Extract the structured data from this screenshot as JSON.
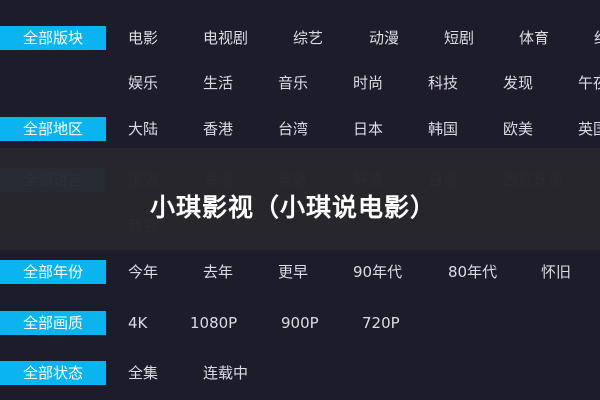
{
  "rows": [
    {
      "label": "全部版块",
      "items": [
        "电影",
        "电视剧",
        "综艺",
        "动漫",
        "短剧",
        "体育",
        "纪录"
      ]
    },
    {
      "label": "",
      "items": [
        "娱乐",
        "生活",
        "音乐",
        "时尚",
        "科技",
        "发现",
        "午夜"
      ]
    },
    {
      "label": "全部地区",
      "items": [
        "大陆",
        "香港",
        "台湾",
        "日本",
        "韩国",
        "欧美",
        "英国"
      ]
    },
    {
      "label": "全部语言",
      "items": [
        "国语",
        "粤语",
        "英语",
        "韩语",
        "日语",
        "西班牙语"
      ]
    },
    {
      "label": "",
      "items": [
        "其它"
      ]
    },
    {
      "label": "全部年份",
      "items": [
        "今年",
        "去年",
        "更早",
        "90年代",
        "80年代",
        "怀旧"
      ]
    },
    {
      "label": "全部画质",
      "items": [
        "4K",
        "1080P",
        "900P",
        "720P"
      ]
    },
    {
      "label": "全部状态",
      "items": [
        "全集",
        "连载中"
      ]
    }
  ],
  "overlay_title": "小琪影视（小琪说电影）",
  "colors": {
    "accent": "#0ab4ee",
    "background": "#1d1c2b"
  }
}
